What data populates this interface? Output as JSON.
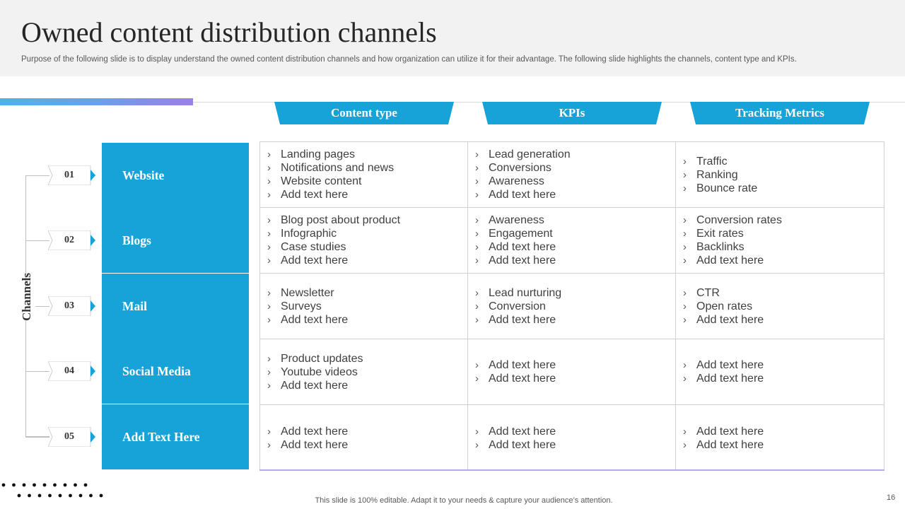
{
  "header": {
    "title": "Owned content distribution channels",
    "subtitle": "Purpose of the following slide is to display understand the owned content distribution channels and how organization can utilize it for their advantage. The following slide highlights the channels, content type and KPIs."
  },
  "colors": {
    "accent": "#17a2d8",
    "header_bg": "#f2f2f2",
    "gradient_start": "#4fb3e6",
    "gradient_end": "#9b7fe8"
  },
  "columns": [
    "Content type",
    "KPIs",
    "Tracking Metrics"
  ],
  "side_label": "Channels",
  "rows": [
    {
      "num": "01",
      "channel": "Website",
      "cells": [
        [
          "Landing pages",
          "Notifications and news",
          "Website content",
          "Add text here"
        ],
        [
          "Lead generation",
          "Conversions",
          "Awareness",
          "Add text here"
        ],
        [
          "Traffic",
          "Ranking",
          "Bounce rate"
        ]
      ]
    },
    {
      "num": "02",
      "channel": "Blogs",
      "cells": [
        [
          "Blog post about product",
          "Infographic",
          "Case studies",
          "Add text here"
        ],
        [
          "Awareness",
          "Engagement",
          "Add text here",
          "Add text here"
        ],
        [
          "Conversion rates",
          "Exit rates",
          "Backlinks",
          "Add text here"
        ]
      ]
    },
    {
      "num": "03",
      "channel": "Mail",
      "cells": [
        [
          "Newsletter",
          "Surveys",
          "Add text here"
        ],
        [
          "Lead nurturing",
          "Conversion",
          "Add text here"
        ],
        [
          "CTR",
          "Open rates",
          "Add text here"
        ]
      ]
    },
    {
      "num": "04",
      "channel": "Social Media",
      "cells": [
        [
          "Product updates",
          "Youtube videos",
          "Add text here"
        ],
        [
          "Add text here",
          "Add text here"
        ],
        [
          "Add text here",
          "Add text here"
        ]
      ]
    },
    {
      "num": "05",
      "channel": "Add Text Here",
      "cells": [
        [
          "Add text here",
          "Add text here"
        ],
        [
          "Add text here",
          "Add text here"
        ],
        [
          "Add text here",
          "Add text here"
        ]
      ]
    }
  ],
  "footer": {
    "note": "This slide is 100% editable. Adapt it to your needs & capture your audience’s attention.",
    "page_number": "16"
  }
}
